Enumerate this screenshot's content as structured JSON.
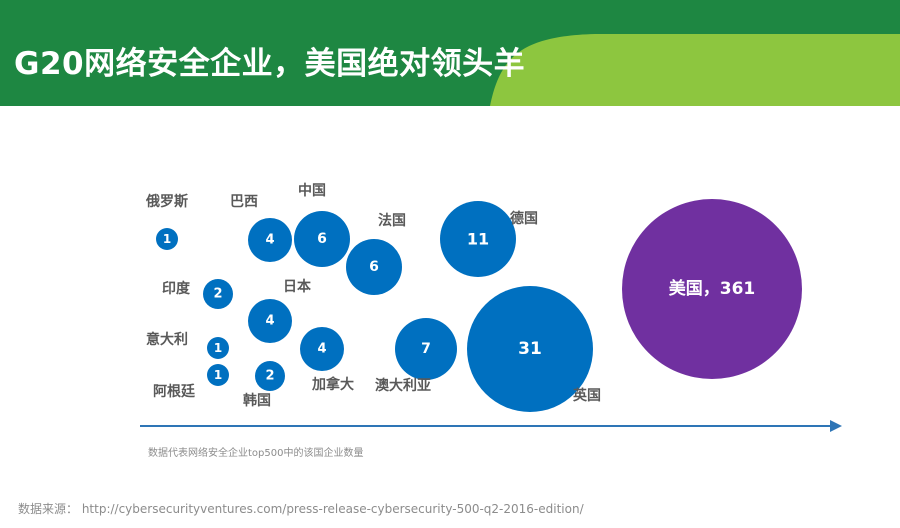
{
  "header": {
    "title": "G20网络安全企业，美国绝对领头羊",
    "colors": {
      "dark_green": "#1e8742",
      "light_green": "#8dc63f"
    }
  },
  "chart_data": {
    "type": "bubble",
    "title": "G20网络安全企业，美国绝对领头羊",
    "points": [
      {
        "name": "俄罗斯",
        "value": 1,
        "label": "1",
        "color": "#0070c0"
      },
      {
        "name": "巴西",
        "value": 4,
        "label": "4",
        "color": "#0070c0"
      },
      {
        "name": "中国",
        "value": 6,
        "label": "6",
        "color": "#0070c0"
      },
      {
        "name": "法国",
        "value": 6,
        "label": "6",
        "color": "#0070c0"
      },
      {
        "name": "德国",
        "value": 11,
        "label": "11",
        "color": "#0070c0"
      },
      {
        "name": "印度",
        "value": 2,
        "label": "2",
        "color": "#0070c0"
      },
      {
        "name": "日本",
        "value": 4,
        "label": "4",
        "color": "#0070c0"
      },
      {
        "name": "意大利",
        "value": 1,
        "label": "1",
        "color": "#0070c0"
      },
      {
        "name": "加拿大",
        "value": 4,
        "label": "4",
        "color": "#0070c0"
      },
      {
        "name": "澳大利亚",
        "value": 7,
        "label": "7",
        "color": "#0070c0"
      },
      {
        "name": "英国",
        "value": 31,
        "label": "31",
        "color": "#0070c0"
      },
      {
        "name": "阿根廷",
        "value": 1,
        "label": "1",
        "color": "#0070c0"
      },
      {
        "name": "韩国",
        "value": 2,
        "label": "2",
        "color": "#0070c0"
      },
      {
        "name": "美国",
        "value": 361,
        "label": "美国，361",
        "color": "#7030a0"
      }
    ],
    "axis_color": "#2e75b6",
    "legend": "none"
  },
  "footnote": "数据代表网络安全企业top500中的该国企业数量",
  "source": "数据来源： http://cybersecurityventures.com/press-release-cybersecurity-500-q2-2016-edition/"
}
